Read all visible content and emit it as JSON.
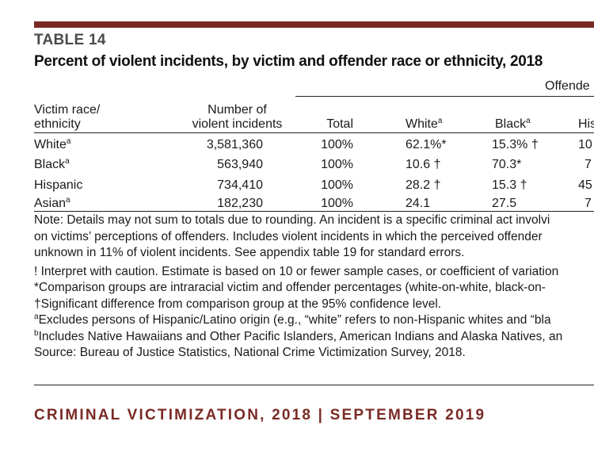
{
  "table_label": "TABLE 14",
  "title": "Percent of violent incidents, by victim and offender race or ethnicity, 2018",
  "offender_group_header": "Offende",
  "columns": {
    "victim_line1": "Victim race/",
    "victim_line2": "ethnicity",
    "number_line1": "Number of",
    "number_line2": "violent incidents",
    "total": "Total",
    "white": "White",
    "white_sup": "a",
    "black": "Black",
    "black_sup": "a",
    "hispanic": "His"
  },
  "rows": [
    {
      "victim": "White",
      "sup": "a",
      "number": "3,581,360",
      "total": "100%",
      "white": "62.1%*",
      "black": "15.3% †",
      "hispanic": "10"
    },
    {
      "victim": "Black",
      "sup": "a",
      "number": "563,940",
      "total": "100%",
      "white": "10.6 †",
      "black": "70.3*",
      "hispanic": "7"
    },
    {
      "victim": "Hispanic",
      "sup": "",
      "number": "734,410",
      "total": "100%",
      "white": "28.2 †",
      "black": "15.3 †",
      "hispanic": "45"
    },
    {
      "victim": "Asian",
      "sup": "a",
      "number": "182,230",
      "total": "100%",
      "white": "24.1",
      "black": "27.5",
      "hispanic": "7"
    }
  ],
  "notes": {
    "note_line1": "Note: Details may not sum to totals due to rounding. An incident is a specific criminal act involvi",
    "note_line2": "on victims’ perceptions of offenders. Includes violent incidents in which the perceived offender",
    "note_line3": "unknown in 11% of violent incidents. See appendix table 19 for standard errors.",
    "caution": "! Interpret with caution. Estimate is based on 10 or fewer sample cases, or coefficient of variation",
    "comparison": "*Comparison groups are intraracial victim and offender percentages (white-on-white, black-on-",
    "significant": "†Significant difference from comparison group at the 95% confidence level.",
    "fn_a_mark": "a",
    "fn_a": "Excludes persons of Hispanic/Latino origin (e.g., “white” refers to non-Hispanic whites and “bla",
    "fn_b_mark": "b",
    "fn_b": "Includes Native Hawaiians and Other Pacific Islanders, American Indians and Alaska Natives, an",
    "source": "Source: Bureau of Justice Statistics, National Crime Victimization Survey, 2018."
  },
  "footer": "CRIMINAL VICTIMIZATION, 2018 | SEPTEMBER 2019",
  "colors": {
    "accent": "#7a2a25"
  }
}
